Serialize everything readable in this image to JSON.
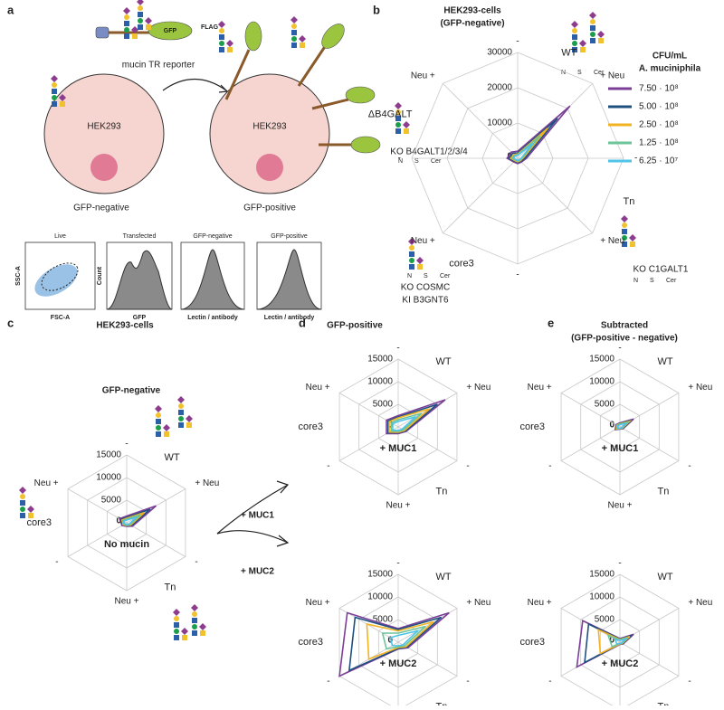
{
  "panels": {
    "a": {
      "label": "a",
      "reporter_tag": "GFP",
      "reporter_flag": "FLAG",
      "reporter_name": "mucin TR reporter",
      "cell_name": "HEK293",
      "cell_left_caption": "GFP-negative",
      "cell_right_caption": "GFP-positive",
      "flow_plots": [
        {
          "title": "Live",
          "xlabel": "FSC-A",
          "ylabel": "SSC-A"
        },
        {
          "title": "Transfected",
          "xlabel": "GFP",
          "ylabel": "Count"
        },
        {
          "title": "GFP-negative",
          "xlabel": "Lectin / antibody"
        },
        {
          "title": "GFP-positive",
          "xlabel": "Lectin / antibody"
        }
      ]
    },
    "b": {
      "label": "b",
      "title": "HEK293-cells",
      "subtitle": "(GFP-negative)",
      "legend_title": "CFU/mL",
      "legend_subtitle": "A. muciniphila",
      "note_b4galt": "KO B4GALT1/2/3/4",
      "note_c1galt1": "KO C1GALT1",
      "note_cosmc": "KO COSMC",
      "note_b3gnt6": "KI B3GNT6"
    },
    "c": {
      "label": "c",
      "title": "HEK293-cells",
      "subtitle": "GFP-negative",
      "arrow_top": "+ MUC1",
      "arrow_bottom": "+ MUC2"
    },
    "d": {
      "label": "d",
      "title": "GFP-positive"
    },
    "e": {
      "label": "e",
      "title": "Subtracted",
      "subtitle": "(GFP-positive - negative)"
    }
  },
  "glycan_labels": [
    "N",
    "S",
    "Cer"
  ],
  "chart_data": [
    {
      "type": "radar",
      "axes": [
        "-",
        "+ Neu",
        "-",
        "+ Neu",
        "-",
        "Neu +",
        "-",
        "Neu +"
      ],
      "groups": [
        "WT",
        "Tn",
        "core3",
        "ΔB4GALT"
      ],
      "ylim": [
        0,
        30000
      ],
      "yticks": [
        0,
        10000,
        20000,
        30000
      ],
      "series": [
        {
          "name": "7.50 · 10⁸",
          "color": "#7b3f98",
          "values": [
            2000,
            21000,
            2500,
            1500,
            1500,
            1500,
            3000,
            2500
          ]
        },
        {
          "name": "5.00 · 10⁸",
          "color": "#1f5080",
          "values": [
            1500,
            16000,
            2000,
            1200,
            1200,
            1200,
            2500,
            2000
          ]
        },
        {
          "name": "2.50 · 10⁸",
          "color": "#f2b321",
          "values": [
            1200,
            12000,
            1500,
            1000,
            1000,
            1000,
            2000,
            1500
          ]
        },
        {
          "name": "1.25 · 10⁸",
          "color": "#6cc49a",
          "values": [
            1000,
            9000,
            1200,
            800,
            800,
            800,
            1500,
            1200
          ]
        },
        {
          "name": "6.25 · 10⁷",
          "color": "#4fc3e8",
          "values": [
            800,
            6000,
            1000,
            600,
            600,
            600,
            1200,
            1000
          ]
        }
      ]
    },
    {
      "type": "radar",
      "axes": [
        "-",
        "+ Neu",
        "-",
        "Neu +",
        "-",
        "Neu +"
      ],
      "groups": [
        "WT",
        "Tn",
        "core3"
      ],
      "annotation": "No mucin",
      "ylim": [
        0,
        15000
      ],
      "yticks": [
        0,
        5000,
        10000,
        15000
      ],
      "series": [
        {
          "color": "#7b3f98",
          "values": [
            1500,
            7500,
            1500,
            800,
            1200,
            1800
          ]
        },
        {
          "color": "#1f5080",
          "values": [
            1200,
            6000,
            1200,
            700,
            1000,
            1500
          ]
        },
        {
          "color": "#f2b321",
          "values": [
            1000,
            4500,
            1000,
            600,
            900,
            1200
          ]
        },
        {
          "color": "#6cc49a",
          "values": [
            800,
            3500,
            800,
            500,
            700,
            1000
          ]
        },
        {
          "color": "#4fc3e8",
          "values": [
            600,
            2500,
            600,
            400,
            500,
            800
          ]
        }
      ]
    },
    {
      "type": "radar",
      "axes": [
        "-",
        "+ Neu",
        "-",
        "Neu +",
        "-",
        "Neu +"
      ],
      "groups": [
        "WT",
        "Tn",
        "core3"
      ],
      "annotation": "+ MUC1",
      "ylim": [
        0,
        15000
      ],
      "yticks": [
        0,
        5000,
        10000,
        15000
      ],
      "series": [
        {
          "color": "#7b3f98",
          "values": [
            2500,
            12000,
            2000,
            1500,
            3000,
            3000
          ]
        },
        {
          "color": "#1f5080",
          "values": [
            2200,
            10000,
            1800,
            1300,
            2600,
            2600
          ]
        },
        {
          "color": "#f2b321",
          "values": [
            2000,
            8000,
            1600,
            1200,
            2300,
            2300
          ]
        },
        {
          "color": "#6cc49a",
          "values": [
            1600,
            6000,
            1300,
            1000,
            1800,
            1800
          ]
        },
        {
          "color": "#4fc3e8",
          "values": [
            1200,
            4500,
            1000,
            800,
            1400,
            1400
          ]
        }
      ]
    },
    {
      "type": "radar",
      "axes": [
        "-",
        "+ Neu",
        "-",
        "Neu +",
        "-",
        "Neu +"
      ],
      "groups": [
        "WT",
        "Tn",
        "core3"
      ],
      "annotation": "+ MUC2",
      "ylim": [
        0,
        15000
      ],
      "yticks": [
        0,
        5000,
        10000,
        15000
      ],
      "series": [
        {
          "color": "#7b3f98",
          "values": [
            3000,
            13000,
            2500,
            1500,
            15000,
            13000
          ]
        },
        {
          "color": "#1f5080",
          "values": [
            2800,
            11000,
            2200,
            1400,
            12500,
            11000
          ]
        },
        {
          "color": "#f2b321",
          "values": [
            2500,
            9000,
            2000,
            1200,
            7500,
            8000
          ]
        },
        {
          "color": "#6cc49a",
          "values": [
            2000,
            7000,
            1600,
            1000,
            3000,
            4000
          ]
        },
        {
          "color": "#4fc3e8",
          "values": [
            1500,
            5000,
            1200,
            800,
            1500,
            2000
          ]
        }
      ]
    },
    {
      "type": "radar",
      "axes": [
        "-",
        "+ Neu",
        "-",
        "Neu +",
        "-",
        "Neu +"
      ],
      "groups": [
        "WT",
        "Tn",
        "core3"
      ],
      "annotation": "+ MUC1",
      "ylim": [
        0,
        15000
      ],
      "yticks": [
        0,
        5000,
        10000,
        15000
      ],
      "series": [
        {
          "color": "#7b3f98",
          "values": [
            900,
            3500,
            800,
            500,
            1200,
            1000
          ]
        },
        {
          "color": "#1f5080",
          "values": [
            800,
            3000,
            700,
            450,
            1000,
            900
          ]
        },
        {
          "color": "#f2b321",
          "values": [
            700,
            2500,
            600,
            400,
            900,
            800
          ]
        },
        {
          "color": "#6cc49a",
          "values": [
            600,
            2000,
            500,
            350,
            700,
            600
          ]
        },
        {
          "color": "#4fc3e8",
          "values": [
            500,
            1500,
            400,
            300,
            500,
            500
          ]
        }
      ]
    },
    {
      "type": "radar",
      "axes": [
        "-",
        "+ Neu",
        "-",
        "Neu +",
        "-",
        "Neu +"
      ],
      "groups": [
        "WT",
        "Tn",
        "core3"
      ],
      "annotation": "+ MUC2",
      "ylim": [
        0,
        15000
      ],
      "yticks": [
        0,
        5000,
        10000,
        15000
      ],
      "series": [
        {
          "color": "#7b3f98",
          "values": [
            800,
            3500,
            800,
            500,
            11000,
            9500
          ]
        },
        {
          "color": "#1f5080",
          "values": [
            700,
            3000,
            700,
            400,
            9000,
            8000
          ]
        },
        {
          "color": "#f2b321",
          "values": [
            600,
            2500,
            600,
            400,
            5000,
            5500
          ]
        },
        {
          "color": "#6cc49a",
          "values": [
            500,
            2000,
            500,
            300,
            2000,
            3000
          ]
        },
        {
          "color": "#4fc3e8",
          "values": [
            400,
            1500,
            400,
            300,
            800,
            1200
          ]
        }
      ]
    }
  ]
}
